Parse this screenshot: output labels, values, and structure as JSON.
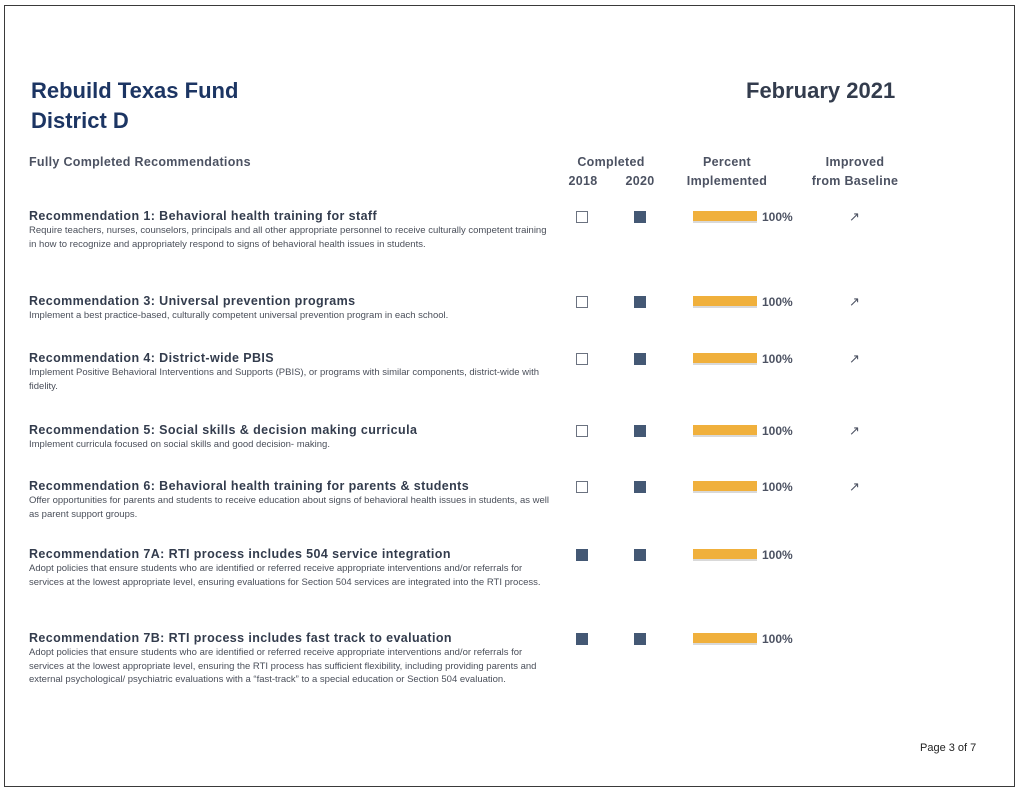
{
  "header": {
    "title_line1": "Rebuild Texas Fund",
    "title_line2": "District D",
    "date": "February 2021"
  },
  "columns": {
    "section_label": "Fully Completed Recommendations",
    "completed": "Completed",
    "year_2018": "2018",
    "year_2020": "2020",
    "percent_line1": "Percent",
    "percent_line2": "Implemented",
    "improved_line1": "Improved",
    "improved_line2": "from Baseline"
  },
  "recommendations": [
    {
      "title": "Recommendation 1: Behavioral health training for staff",
      "description": "Require teachers, nurses, counselors, principals and all other appropriate personnel to receive culturally competent training in how to recognize and appropriately respond to signs of behavioral health issues in students.",
      "completed_2018": false,
      "completed_2020": true,
      "percent_implemented": 100,
      "percent_label": "100%",
      "improved_icon": "arrow-up-right-icon",
      "improved_symbol": "↗"
    },
    {
      "title": "Recommendation 3: Universal prevention programs",
      "description": "Implement a best practice-based, culturally competent universal prevention program in each school.",
      "completed_2018": false,
      "completed_2020": true,
      "percent_implemented": 100,
      "percent_label": "100%",
      "improved_icon": "arrow-up-right-icon",
      "improved_symbol": "↗"
    },
    {
      "title": "Recommendation 4: District-wide PBIS",
      "description": "Implement Positive Behavioral Interventions and Supports (PBIS), or programs with similar components, district-wide with fidelity.",
      "completed_2018": false,
      "completed_2020": true,
      "percent_implemented": 100,
      "percent_label": "100%",
      "improved_icon": "arrow-up-right-icon",
      "improved_symbol": "↗"
    },
    {
      "title": "Recommendation 5: Social skills & decision making curricula",
      "description": "Implement curricula focused on social skills and good decision- making.",
      "completed_2018": false,
      "completed_2020": true,
      "percent_implemented": 100,
      "percent_label": "100%",
      "improved_icon": "arrow-up-right-icon",
      "improved_symbol": "↗"
    },
    {
      "title": "Recommendation 6: Behavioral health training for parents & students",
      "description": "Offer opportunities for parents and students to receive education about signs of behavioral health issues in students, as well as parent support groups.",
      "completed_2018": false,
      "completed_2020": true,
      "percent_implemented": 100,
      "percent_label": "100%",
      "improved_icon": "arrow-up-right-icon",
      "improved_symbol": "↗"
    },
    {
      "title": "Recommendation 7A: RTI process includes 504 service integration",
      "description": "Adopt policies that ensure students who are identified or referred receive appropriate interventions and/or referrals for services at the lowest appropriate level, ensuring evaluations for Section 504 services are integrated into the RTI process.",
      "completed_2018": true,
      "completed_2020": true,
      "percent_implemented": 100,
      "percent_label": "100%",
      "improved_icon": "",
      "improved_symbol": ""
    },
    {
      "title": "Recommendation 7B: RTI process includes fast track to evaluation",
      "description": "Adopt policies that ensure students who are identified or referred receive appropriate interventions and/or referrals for services at the lowest appropriate level, ensuring the RTI process has sufficient flexibility, including providing parents and external psychological/ psychiatric evaluations with a “fast-track” to a special education or Section 504 evaluation.",
      "completed_2018": true,
      "completed_2020": true,
      "percent_implemented": 100,
      "percent_label": "100%",
      "improved_icon": "",
      "improved_symbol": ""
    }
  ],
  "footer": {
    "page_label": "Page 3 of  7"
  },
  "colors": {
    "title": "#1c3563",
    "filled_box": "#445874",
    "bar": "#f0b03c"
  }
}
